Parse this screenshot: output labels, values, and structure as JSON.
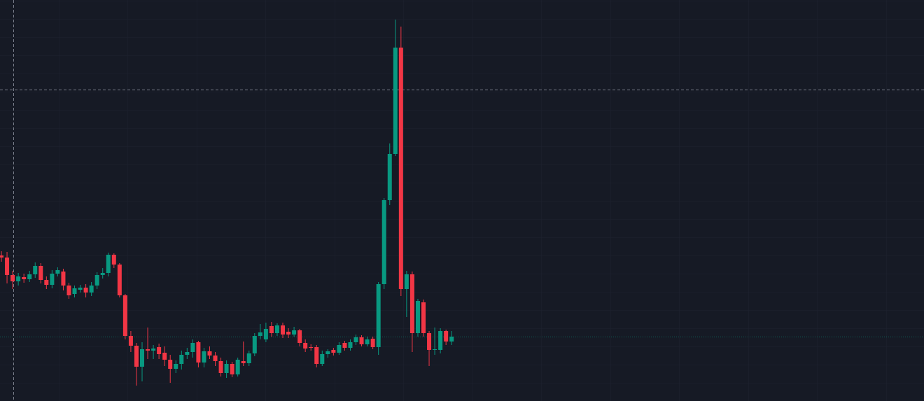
{
  "chart_data": {
    "type": "candlestick",
    "up_color": "#089981",
    "down_color": "#f23645",
    "ylim": [
      0,
      573
    ],
    "open": [
      208,
      205,
      180,
      171,
      177,
      174,
      181,
      193,
      173,
      166,
      182,
      185,
      165,
      153,
      159,
      162,
      155,
      165,
      180,
      183,
      209,
      195,
      151,
      93,
      79,
      49,
      74,
      72,
      77,
      69,
      59,
      46,
      53,
      66,
      70,
      84,
      55,
      71,
      65,
      57,
      40,
      53,
      38,
      57,
      54,
      68,
      93,
      88,
      107,
      97,
      108,
      99,
      95,
      101,
      83,
      77,
      77,
      53,
      67,
      73,
      69,
      83,
      76,
      84,
      91,
      81,
      89,
      77,
      167,
      287,
      353,
      505,
      160,
      181,
      97,
      141,
      97,
      73,
      73,
      100,
      85
    ],
    "high": [
      214,
      213,
      186,
      183,
      182,
      186,
      198,
      197,
      178,
      187,
      191,
      189,
      169,
      165,
      166,
      167,
      170,
      184,
      190,
      212,
      211,
      197,
      153,
      100,
      83,
      84,
      105,
      80,
      82,
      78,
      66,
      58,
      72,
      76,
      88,
      86,
      76,
      78,
      70,
      62,
      58,
      56,
      62,
      85,
      72,
      97,
      110,
      112,
      113,
      111,
      112,
      104,
      106,
      103,
      88,
      81,
      80,
      72,
      74,
      76,
      84,
      86,
      88,
      95,
      94,
      92,
      92,
      170,
      290,
      368,
      545,
      535,
      186,
      185,
      146,
      145,
      100,
      105,
      104,
      102,
      100
    ],
    "low": [
      199,
      168,
      160,
      165,
      169,
      170,
      176,
      168,
      160,
      161,
      178,
      158,
      146,
      148,
      155,
      148,
      150,
      160,
      175,
      178,
      190,
      148,
      88,
      70,
      22,
      28,
      60,
      60,
      60,
      50,
      26,
      40,
      45,
      60,
      62,
      48,
      48,
      60,
      50,
      35,
      33,
      34,
      35,
      50,
      50,
      64,
      88,
      84,
      92,
      93,
      90,
      90,
      92,
      78,
      70,
      72,
      48,
      50,
      62,
      65,
      66,
      72,
      72,
      80,
      78,
      78,
      74,
      66,
      160,
      280,
      350,
      150,
      120,
      70,
      92,
      92,
      50,
      66,
      68,
      80,
      80
    ],
    "close": [
      205,
      180,
      171,
      178,
      174,
      181,
      193,
      173,
      166,
      182,
      187,
      165,
      151,
      161,
      162,
      155,
      165,
      180,
      183,
      209,
      195,
      151,
      93,
      79,
      49,
      74,
      72,
      75,
      67,
      59,
      46,
      53,
      66,
      70,
      83,
      55,
      71,
      65,
      57,
      40,
      53,
      38,
      59,
      54,
      68,
      93,
      98,
      103,
      97,
      108,
      95,
      95,
      101,
      83,
      75,
      76,
      53,
      67,
      71,
      69,
      80,
      76,
      84,
      91,
      81,
      88,
      77,
      167,
      287,
      353,
      505,
      160,
      181,
      97,
      143,
      97,
      73,
      74,
      100,
      85,
      92
    ]
  }
}
